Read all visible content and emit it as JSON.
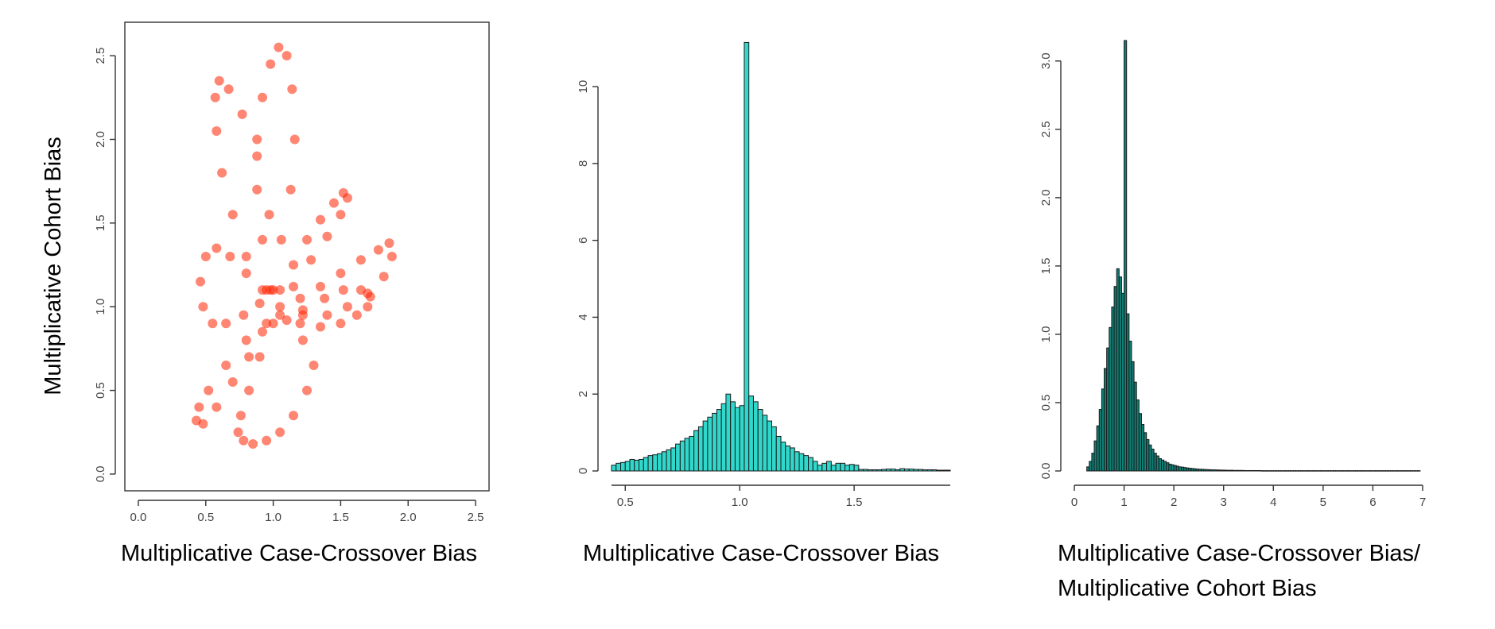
{
  "chart_data": [
    {
      "type": "scatter",
      "xlabel": "Multiplicative Case-Crossover Bias",
      "ylabel": "Multiplicative Cohort Bias",
      "xlim": [
        -0.1,
        2.6
      ],
      "ylim": [
        -0.1,
        2.7
      ],
      "xticks": [
        "0.0",
        "0.5",
        "1.0",
        "1.5",
        "2.0",
        "2.5"
      ],
      "yticks": [
        "0.0",
        "0.5",
        "1.0",
        "1.5",
        "2.0",
        "2.5"
      ],
      "color": "#ff2200",
      "box": true,
      "series": [
        {
          "lobe": "up-left",
          "x": [
            0.92,
            0.8,
            0.7,
            0.62,
            0.58,
            0.57,
            0.6,
            0.67,
            0.77,
            0.88,
            0.97
          ],
          "y": [
            1.1,
            1.3,
            1.55,
            1.8,
            2.05,
            2.25,
            2.35,
            2.3,
            2.15,
            1.9,
            1.55
          ]
        },
        {
          "lobe": "up",
          "x": [
            0.98,
            0.92,
            0.88,
            0.88,
            0.92,
            0.98,
            1.04,
            1.1,
            1.14,
            1.16,
            1.13,
            1.06,
            1.0
          ],
          "y": [
            1.1,
            1.4,
            1.7,
            2.0,
            2.25,
            2.45,
            2.55,
            2.5,
            2.3,
            2.0,
            1.7,
            1.4,
            1.1
          ]
        },
        {
          "lobe": "up-right",
          "x": [
            1.05,
            1.15,
            1.25,
            1.35,
            1.45,
            1.52,
            1.55,
            1.5,
            1.4,
            1.28,
            1.15
          ],
          "y": [
            1.1,
            1.25,
            1.4,
            1.52,
            1.62,
            1.68,
            1.65,
            1.55,
            1.42,
            1.28,
            1.12
          ]
        },
        {
          "lobe": "right",
          "x": [
            1.05,
            1.2,
            1.35,
            1.5,
            1.65,
            1.78,
            1.86,
            1.88,
            1.82,
            1.7,
            1.55,
            1.4,
            1.22
          ],
          "y": [
            1.0,
            1.05,
            1.12,
            1.2,
            1.28,
            1.34,
            1.38,
            1.3,
            1.18,
            1.08,
            1.0,
            0.95,
            0.95
          ]
        },
        {
          "lobe": "down-right",
          "x": [
            1.05,
            1.2,
            1.35,
            1.5,
            1.62,
            1.7,
            1.72,
            1.65,
            1.52,
            1.38,
            1.22
          ],
          "y": [
            0.95,
            0.9,
            0.88,
            0.9,
            0.95,
            1.0,
            1.06,
            1.1,
            1.1,
            1.05,
            0.98
          ]
        },
        {
          "lobe": "down",
          "x": [
            1.0,
            0.9,
            0.82,
            0.76,
            0.74,
            0.78,
            0.85,
            0.95,
            1.05,
            1.15,
            1.25,
            1.3,
            1.22,
            1.1
          ],
          "y": [
            0.9,
            0.7,
            0.5,
            0.35,
            0.25,
            0.2,
            0.18,
            0.2,
            0.25,
            0.35,
            0.5,
            0.65,
            0.8,
            0.92
          ]
        },
        {
          "lobe": "down-left",
          "x": [
            0.95,
            0.8,
            0.65,
            0.52,
            0.45,
            0.43,
            0.48,
            0.58,
            0.7,
            0.82,
            0.92
          ],
          "y": [
            0.9,
            0.8,
            0.65,
            0.5,
            0.4,
            0.32,
            0.3,
            0.4,
            0.55,
            0.7,
            0.85
          ]
        },
        {
          "lobe": "left",
          "x": [
            0.95,
            0.8,
            0.68,
            0.58,
            0.5,
            0.46,
            0.48,
            0.55,
            0.65,
            0.78,
            0.9
          ],
          "y": [
            1.1,
            1.2,
            1.3,
            1.35,
            1.3,
            1.15,
            1.0,
            0.9,
            0.9,
            0.95,
            1.02
          ]
        }
      ]
    },
    {
      "type": "bar",
      "xlabel": "Multiplicative Case-Crossover Bias",
      "ylabel": "",
      "xlim": [
        0.44,
        1.92
      ],
      "ylim": [
        0,
        11.2
      ],
      "xticks": [
        "0.5",
        "1.0",
        "1.5"
      ],
      "yticks": [
        "0",
        "2",
        "4",
        "6",
        "8",
        "10"
      ],
      "bin_start": 0.44,
      "bin_width": 0.02,
      "bar_color": "#30d8cc",
      "values": [
        0.15,
        0.2,
        0.22,
        0.25,
        0.3,
        0.28,
        0.3,
        0.35,
        0.4,
        0.42,
        0.45,
        0.5,
        0.55,
        0.6,
        0.7,
        0.78,
        0.85,
        0.9,
        1.05,
        1.15,
        1.3,
        1.4,
        1.5,
        1.6,
        1.75,
        2.0,
        1.8,
        1.65,
        1.7,
        11.15,
        1.95,
        1.8,
        1.6,
        1.45,
        1.3,
        1.15,
        0.9,
        0.75,
        0.65,
        0.6,
        0.5,
        0.45,
        0.4,
        0.35,
        0.25,
        0.15,
        0.2,
        0.25,
        0.15,
        0.2,
        0.2,
        0.15,
        0.17,
        0.15,
        0.04,
        0.04,
        0.03,
        0.03,
        0.03,
        0.04,
        0.05,
        0.05,
        0.03,
        0.06,
        0.05,
        0.05,
        0.04,
        0.04,
        0.03,
        0.03,
        0.03,
        0.02,
        0.02,
        0.02
      ]
    },
    {
      "type": "bar",
      "xlabel": "Multiplicative Case-Crossover Bias/ Multiplicative Cohort Bias",
      "xlabel_lines": [
        "Multiplicative Case-Crossover Bias/",
        "Multiplicative Cohort Bias"
      ],
      "ylabel": "",
      "xlim": [
        0,
        7
      ],
      "ylim": [
        0,
        3.15
      ],
      "xticks": [
        "0",
        "1",
        "2",
        "3",
        "4",
        "5",
        "6",
        "7"
      ],
      "yticks": [
        "0.0",
        "0.5",
        "1.0",
        "1.5",
        "2.0",
        "2.5",
        "3.0"
      ],
      "bin_start": 0.25,
      "bin_width": 0.05,
      "bar_color": "#0f8076",
      "values": [
        0.03,
        0.07,
        0.13,
        0.22,
        0.33,
        0.45,
        0.6,
        0.75,
        0.9,
        1.05,
        1.2,
        1.35,
        1.48,
        1.42,
        1.3,
        3.15,
        1.15,
        0.95,
        0.8,
        0.65,
        0.52,
        0.42,
        0.34,
        0.28,
        0.23,
        0.19,
        0.16,
        0.13,
        0.11,
        0.09,
        0.08,
        0.07,
        0.06,
        0.05,
        0.045,
        0.04,
        0.035,
        0.03,
        0.028,
        0.025,
        0.022,
        0.02,
        0.018,
        0.016,
        0.014,
        0.013,
        0.012,
        0.011,
        0.01,
        0.009,
        0.008,
        0.008,
        0.007,
        0.007,
        0.006,
        0.006,
        0.005,
        0.005,
        0.005,
        0.004,
        0.004,
        0.004,
        0.004,
        0.003,
        0.003,
        0.003,
        0.003,
        0.003,
        0.003,
        0.003,
        0.002,
        0.002,
        0.002,
        0.002,
        0.002,
        0.002,
        0.002,
        0.002,
        0.002,
        0.002,
        0.002,
        0.002,
        0.002,
        0.002,
        0.002,
        0.002,
        0.002,
        0.002,
        0.002,
        0.002,
        0.002,
        0.002,
        0.002,
        0.002,
        0.002,
        0.002,
        0.002,
        0.002,
        0.002,
        0.002,
        0.002,
        0.002,
        0.002,
        0.002,
        0.002,
        0.002,
        0.002,
        0.002,
        0.002,
        0.002,
        0.002,
        0.002,
        0.002,
        0.002,
        0.002,
        0.002,
        0.002,
        0.002,
        0.002,
        0.002,
        0.002,
        0.002,
        0.002,
        0.002,
        0.002,
        0.002,
        0.002,
        0.002,
        0.002,
        0.002,
        0.002,
        0.002,
        0.002,
        0.002
      ]
    }
  ]
}
